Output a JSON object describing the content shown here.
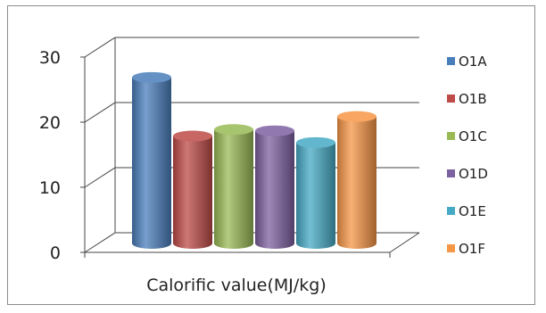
{
  "chart_data": {
    "type": "bar",
    "style": "3d-cylinder",
    "title": "",
    "xlabel": "Calorific value(MJ/kg)",
    "ylabel": "",
    "ylim": [
      0,
      30
    ],
    "yticks": [
      "0",
      "10",
      "20",
      "30"
    ],
    "grid": true,
    "legend_position": "right",
    "categories": [
      "Calorific value(MJ/kg)"
    ],
    "series": [
      {
        "name": "O1A",
        "values": [
          25.5
        ],
        "color": "#4a7ebb"
      },
      {
        "name": "O1B",
        "values": [
          16.5
        ],
        "color": "#be4b48"
      },
      {
        "name": "O1C",
        "values": [
          17.5
        ],
        "color": "#98b954"
      },
      {
        "name": "O1D",
        "values": [
          17.3
        ],
        "color": "#7d60a0"
      },
      {
        "name": "O1E",
        "values": [
          15.5
        ],
        "color": "#46aac5"
      },
      {
        "name": "O1F",
        "values": [
          19.5
        ],
        "color": "#f79646"
      }
    ]
  }
}
